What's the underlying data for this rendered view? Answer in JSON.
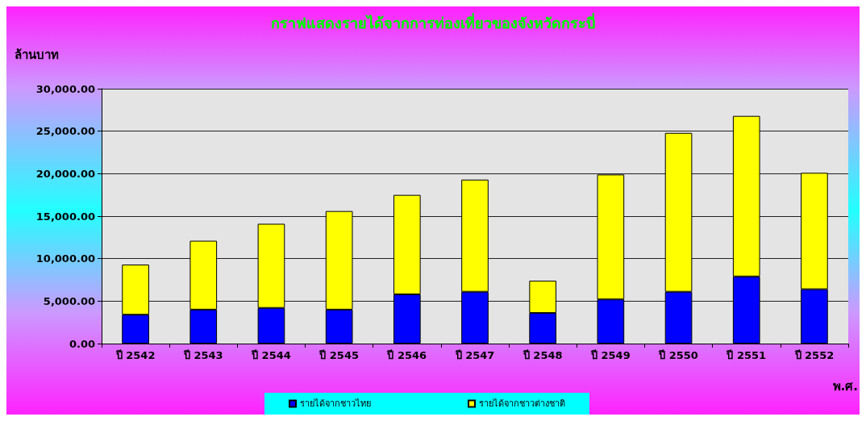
{
  "chart_data": {
    "type": "bar",
    "title": "กราฟแสดงรายได้จากการท่องเที่ยวของจังหวัดกระบี่",
    "ylabel": "ล้านบาท",
    "xlabel": "พ.ศ.",
    "categories": [
      "ปี 2542",
      "ปี 2543",
      "ปี 2544",
      "ปี 2545",
      "ปี 2546",
      "ปี 2547",
      "ปี 2548",
      "ปี 2549",
      "ปี 2550",
      "ปี 2551",
      "ปี 2552"
    ],
    "stacked": true,
    "series": [
      {
        "name": "รายได้จากชาวไทย",
        "color": "#0000ff",
        "values": [
          3400,
          4000,
          4200,
          4000,
          5800,
          6100,
          3600,
          5200,
          6100,
          7900,
          6400
        ]
      },
      {
        "name": "รายได้จากชาวต่างชาติ",
        "color": "#ffff00",
        "values": [
          5900,
          8100,
          9900,
          11600,
          11700,
          13200,
          3800,
          14700,
          18700,
          18900,
          13700
        ]
      }
    ],
    "ylim": [
      0,
      30000
    ],
    "yticks": [
      {
        "value": 0,
        "label": "0.00"
      },
      {
        "value": 5000,
        "label": "5,000.00"
      },
      {
        "value": 10000,
        "label": "10,000.00"
      },
      {
        "value": 15000,
        "label": "15,000.00"
      },
      {
        "value": 20000,
        "label": "20,000.00"
      },
      {
        "value": 25000,
        "label": "25,000.00"
      },
      {
        "value": 30000,
        "label": "30,000.00"
      }
    ],
    "grid": "y",
    "legend": "bottom"
  }
}
